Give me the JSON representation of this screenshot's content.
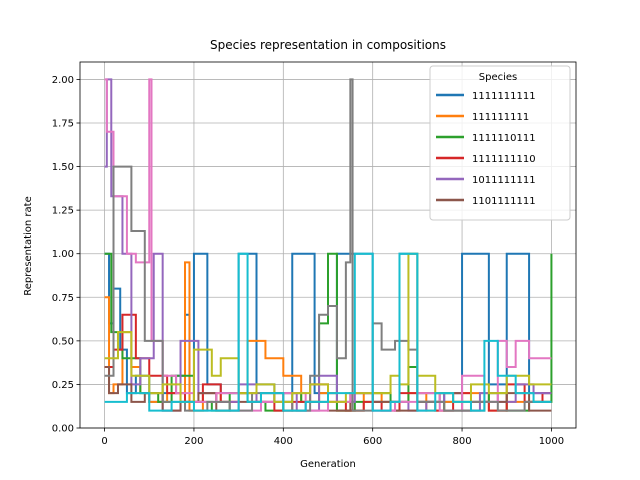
{
  "chart_data": {
    "type": "line",
    "title": "Species representation in compositions",
    "xlabel": "Generation",
    "ylabel": "Representation rate",
    "xlim": [
      -55,
      1055
    ],
    "ylim": [
      0,
      2.1
    ],
    "xticks": [
      0,
      200,
      400,
      600,
      800,
      1000
    ],
    "yticks": [
      0.0,
      0.25,
      0.5,
      0.75,
      1.0,
      1.25,
      1.5,
      1.75,
      2.0
    ],
    "xtick_labels": [
      "0",
      "200",
      "400",
      "600",
      "800",
      "1000"
    ],
    "ytick_labels": [
      "0.00",
      "0.25",
      "0.50",
      "0.75",
      "1.00",
      "1.25",
      "1.50",
      "1.75",
      "2.00"
    ],
    "grid": true,
    "legend": {
      "title": "Species",
      "position": "top-right"
    },
    "series": [
      {
        "name": "1111111111",
        "color": "#1f77b4",
        "step": true,
        "x": [
          0,
          10,
          20,
          35,
          50,
          70,
          100,
          130,
          160,
          180,
          190,
          200,
          230,
          260,
          300,
          340,
          380,
          420,
          470,
          520,
          600,
          660,
          700,
          760,
          800,
          860,
          900,
          950,
          1000
        ],
        "y": [
          1.0,
          0.6,
          0.8,
          0.45,
          0.2,
          0.3,
          0.15,
          0.2,
          0.3,
          0.65,
          0.15,
          1.0,
          0.25,
          0.2,
          1.0,
          0.25,
          0.15,
          1.0,
          0.2,
          1.0,
          0.15,
          1.0,
          0.2,
          0.15,
          1.0,
          0.25,
          1.0,
          0.2,
          0.2
        ]
      },
      {
        "name": "111111111",
        "color": "#ff7f0e",
        "step": true,
        "x": [
          0,
          10,
          20,
          40,
          60,
          80,
          100,
          140,
          180,
          190,
          220,
          260,
          300,
          320,
          360,
          400,
          440,
          480,
          520,
          580,
          620,
          680,
          720,
          760,
          800,
          860,
          900,
          950,
          1000
        ],
        "y": [
          0.75,
          0.2,
          0.25,
          0.55,
          0.35,
          0.2,
          0.15,
          0.2,
          0.95,
          0.1,
          0.2,
          0.15,
          0.2,
          0.5,
          0.4,
          0.3,
          0.15,
          0.2,
          0.1,
          0.2,
          0.15,
          0.2,
          0.1,
          0.15,
          0.2,
          0.1,
          0.15,
          0.15,
          0.15
        ]
      },
      {
        "name": "1111110111",
        "color": "#2ca02c",
        "step": true,
        "x": [
          0,
          15,
          40,
          80,
          120,
          150,
          200,
          240,
          280,
          320,
          360,
          400,
          440,
          480,
          500,
          520,
          560,
          600,
          640,
          680,
          700,
          760,
          800,
          860,
          900,
          950,
          1000
        ],
        "y": [
          1.0,
          0.55,
          0.4,
          0.2,
          0.15,
          0.3,
          0.15,
          0.1,
          0.2,
          0.15,
          0.1,
          0.2,
          0.15,
          0.6,
          1.0,
          0.1,
          0.15,
          0.2,
          0.15,
          0.35,
          0.15,
          0.1,
          0.15,
          0.2,
          0.1,
          0.15,
          1.0
        ]
      },
      {
        "name": "1111111110",
        "color": "#d62728",
        "step": true,
        "x": [
          0,
          20,
          40,
          70,
          100,
          140,
          180,
          220,
          260,
          300,
          340,
          380,
          420,
          460,
          500,
          540,
          580,
          620,
          660,
          700,
          740,
          780,
          820,
          860,
          900,
          940,
          980,
          1000
        ],
        "y": [
          0.35,
          0.45,
          0.65,
          0.4,
          0.3,
          0.2,
          0.15,
          0.25,
          0.15,
          0.2,
          0.15,
          0.1,
          0.15,
          0.25,
          0.15,
          0.1,
          0.15,
          0.1,
          0.2,
          0.15,
          0.1,
          0.2,
          0.15,
          0.1,
          0.25,
          0.15,
          0.2,
          0.2
        ]
      },
      {
        "name": "1011111111",
        "color": "#9467bd",
        "step": true,
        "x": [
          0,
          5,
          15,
          40,
          60,
          80,
          110,
          130,
          170,
          210,
          250,
          300,
          340,
          380,
          430,
          480,
          520,
          560,
          600,
          640,
          680,
          720,
          760,
          800,
          840,
          880,
          920,
          960,
          1000
        ],
        "y": [
          1.5,
          2.0,
          1.33,
          1.0,
          0.25,
          0.4,
          1.0,
          0.1,
          0.5,
          0.2,
          0.15,
          0.25,
          0.15,
          0.2,
          0.1,
          0.3,
          0.15,
          0.2,
          0.1,
          0.15,
          0.1,
          0.15,
          0.2,
          0.1,
          0.2,
          0.15,
          0.25,
          0.2,
          0.2
        ]
      },
      {
        "name": "1101111111",
        "color": "#8c564b",
        "step": true,
        "x": [
          0,
          10,
          30,
          60,
          90,
          130,
          170,
          210,
          250,
          300,
          350,
          400,
          450,
          500,
          550,
          600,
          650,
          700,
          750,
          800,
          850,
          900,
          950,
          1000
        ],
        "y": [
          0.35,
          0.2,
          0.25,
          0.15,
          0.2,
          0.1,
          0.15,
          0.2,
          0.1,
          0.15,
          0.2,
          0.1,
          0.15,
          0.1,
          0.2,
          0.15,
          0.1,
          0.15,
          0.2,
          0.1,
          0.15,
          0.2,
          0.1,
          0.1
        ]
      },
      {
        "name": "",
        "color": "#e377c2",
        "step": true,
        "x": [
          0,
          5,
          20,
          50,
          70,
          100,
          105,
          130,
          160,
          200,
          250,
          300,
          350,
          400,
          450,
          500,
          550,
          600,
          650,
          700,
          750,
          800,
          850,
          880,
          900,
          920,
          950,
          1000
        ],
        "y": [
          2.0,
          1.7,
          1.33,
          1.0,
          0.95,
          2.0,
          0.5,
          0.3,
          0.2,
          0.15,
          0.2,
          0.1,
          0.15,
          0.2,
          0.1,
          0.15,
          0.2,
          0.1,
          0.15,
          0.2,
          0.1,
          0.3,
          0.15,
          0.5,
          0.35,
          0.5,
          0.4,
          0.4
        ]
      },
      {
        "name": "",
        "color": "#7f7f7f",
        "step": true,
        "x": [
          0,
          20,
          50,
          60,
          90,
          130,
          180,
          230,
          280,
          330,
          380,
          420,
          460,
          480,
          500,
          520,
          540,
          550,
          555,
          600,
          620,
          650,
          680,
          700,
          760,
          820,
          880,
          940,
          1000
        ],
        "y": [
          0.3,
          1.5,
          1.5,
          1.13,
          0.5,
          0.15,
          0.1,
          0.15,
          0.1,
          0.2,
          0.15,
          0.1,
          0.3,
          0.65,
          0.7,
          0.4,
          0.95,
          2.0,
          0.1,
          0.6,
          0.45,
          0.5,
          0.45,
          0.15,
          0.1,
          0.15,
          0.1,
          0.15,
          0.15
        ]
      },
      {
        "name": "",
        "color": "#bcbd22",
        "step": true,
        "x": [
          0,
          30,
          60,
          100,
          130,
          170,
          200,
          240,
          260,
          300,
          340,
          380,
          420,
          460,
          500,
          540,
          600,
          640,
          660,
          680,
          700,
          740,
          780,
          820,
          860,
          900,
          950,
          1000
        ],
        "y": [
          0.4,
          0.55,
          0.3,
          0.2,
          0.25,
          0.15,
          0.45,
          0.3,
          0.4,
          0.2,
          0.25,
          0.15,
          0.2,
          0.25,
          0.15,
          0.2,
          0.2,
          0.3,
          0.25,
          1.0,
          0.3,
          0.2,
          0.15,
          0.25,
          0.2,
          0.3,
          0.25,
          0.25
        ]
      },
      {
        "name": "",
        "color": "#17becf",
        "step": true,
        "x": [
          0,
          50,
          100,
          150,
          200,
          300,
          320,
          350,
          400,
          450,
          500,
          560,
          600,
          640,
          660,
          700,
          740,
          780,
          820,
          850,
          880,
          920,
          960,
          1000
        ],
        "y": [
          0.15,
          0.2,
          0.1,
          0.15,
          0.1,
          1.0,
          0.15,
          0.2,
          0.1,
          0.15,
          0.2,
          1.0,
          0.1,
          0.15,
          1.0,
          0.1,
          0.2,
          0.15,
          0.1,
          0.5,
          0.3,
          0.2,
          0.15,
          0.15
        ]
      }
    ]
  }
}
